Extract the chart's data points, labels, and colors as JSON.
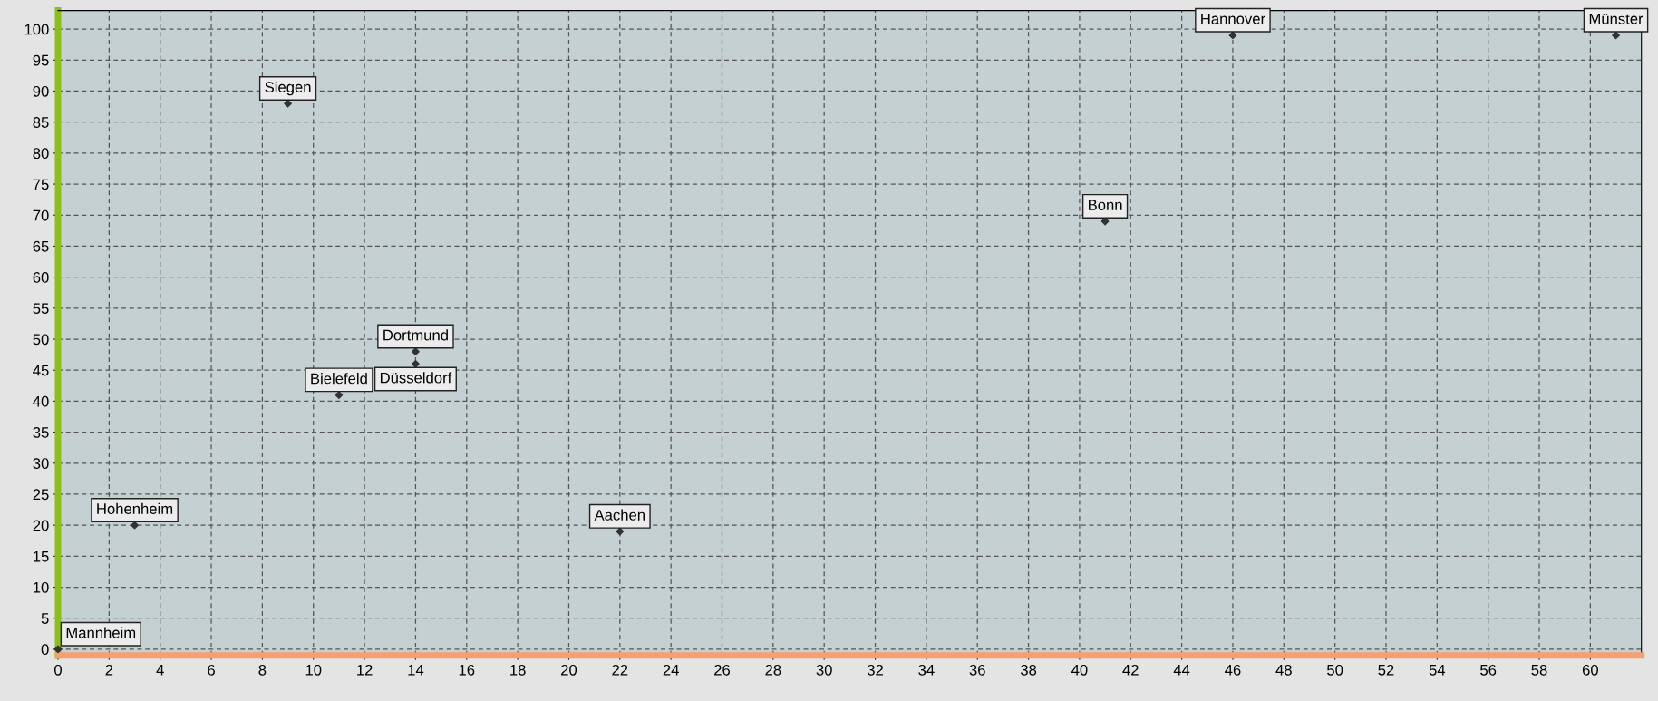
{
  "chart_data": {
    "type": "scatter",
    "x": [
      0,
      3,
      9,
      11,
      14,
      14,
      22,
      41,
      46,
      61
    ],
    "series": [
      {
        "color": "#333333",
        "values": [
          0,
          20,
          88,
          41,
          48,
          46,
          19,
          69,
          99,
          99
        ]
      }
    ],
    "annotations": [
      {
        "text": "Mannheim",
        "x": 0,
        "y": 0
      },
      {
        "text": "Hohenheim",
        "x": 3,
        "y": 20
      },
      {
        "text": "Siegen",
        "x": 9,
        "y": 88
      },
      {
        "text": "Bielefeld",
        "x": 11,
        "y": 41
      },
      {
        "text": "Dortmund",
        "x": 14,
        "y": 48
      },
      {
        "text": "Düsseldorf",
        "x": 14,
        "y": 46
      },
      {
        "text": "Aachen",
        "x": 22,
        "y": 19
      },
      {
        "text": "Bonn",
        "x": 41,
        "y": 69
      },
      {
        "text": "Hannover",
        "x": 46,
        "y": 99
      },
      {
        "text": "Münster",
        "x": 61,
        "y": 99
      }
    ],
    "xlim": [
      0,
      62
    ],
    "ylim": [
      -1,
      103
    ],
    "xticks": [
      0,
      2,
      4,
      6,
      8,
      10,
      12,
      14,
      16,
      18,
      20,
      22,
      24,
      26,
      28,
      30,
      32,
      34,
      36,
      38,
      40,
      42,
      44,
      46,
      48,
      50,
      52,
      54,
      56,
      58,
      60
    ],
    "yticks": [
      0,
      5,
      10,
      15,
      20,
      25,
      30,
      35,
      40,
      45,
      50,
      55,
      60,
      65,
      70,
      75,
      80,
      85,
      90,
      95,
      100
    ],
    "grid": true,
    "marker": "diamond"
  }
}
